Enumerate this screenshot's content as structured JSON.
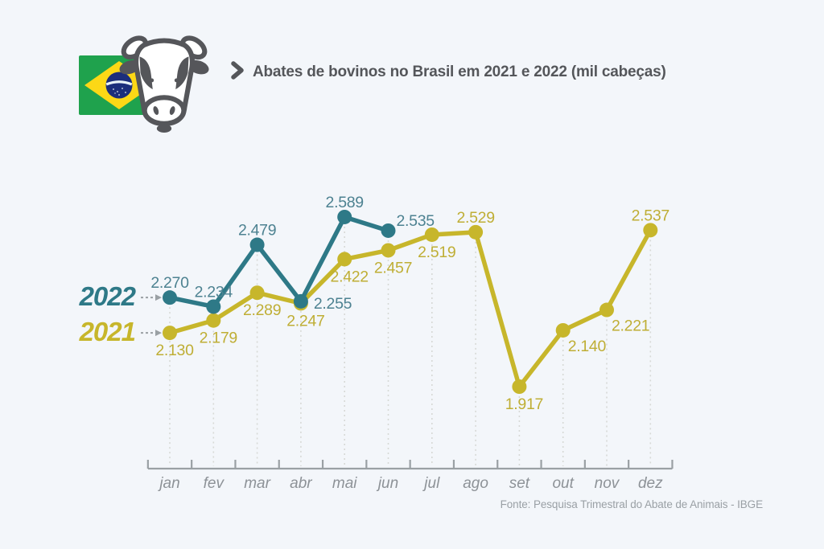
{
  "header": {
    "title": "Abates de bovinos no Brasil em 2021 e 2022 (mil cabeças)"
  },
  "source": "Fonte: Pesquisa Trimestral do Abate de Animais - IBGE",
  "colors": {
    "background": "#f3f6fa",
    "title_text": "#54565a",
    "source_text": "#9aa0a5",
    "axis": "#9aa0a4",
    "month_label": "#8d9297",
    "grid_dotted": "#d7d9d6",
    "series_2022": "#2e7987",
    "series_2021": "#c7b62b",
    "label_2022": "#4d8291",
    "label_2021": "#bfae35",
    "flag_green": "#1fa24d",
    "flag_yellow": "#fcd816",
    "flag_blue": "#1b2e7b",
    "cow_gray": "#55565a"
  },
  "icons": {
    "flag": "brazil-flag",
    "cow": "cow-head-icon",
    "chevron": "chevron-right-icon"
  },
  "chart_data": {
    "type": "line",
    "title": "Abates de bovinos no Brasil em 2021 e 2022 (mil cabeças)",
    "ylabel": "mil cabeças",
    "xlabel": "",
    "ylim": [
      1850,
      2650
    ],
    "grid": "dotted-vertical-per-month",
    "legend_position": "left-of-first-points",
    "categories": [
      "jan",
      "fev",
      "mar",
      "abr",
      "mai",
      "jun",
      "jul",
      "ago",
      "set",
      "out",
      "nov",
      "dez"
    ],
    "series": [
      {
        "name": "2022",
        "color": "#2e7987",
        "label_color": "#4d8291",
        "values": [
          2270,
          2234,
          2479,
          2255,
          2589,
          2535,
          null,
          null,
          null,
          null,
          null,
          null
        ],
        "labels": [
          "2.270",
          "2.234",
          "2.479",
          "2.255",
          "2.589",
          "2.535",
          null,
          null,
          null,
          null,
          null,
          null
        ],
        "label_placement": [
          "above",
          "above",
          "above",
          "right",
          "above",
          "above-right",
          null,
          null,
          null,
          null,
          null,
          null
        ]
      },
      {
        "name": "2021",
        "color": "#c7b62b",
        "label_color": "#bfae35",
        "values": [
          2130,
          2179,
          2289,
          2247,
          2422,
          2457,
          2519,
          2529,
          1917,
          2140,
          2221,
          2537
        ],
        "labels": [
          "2.130",
          "2.179",
          "2.289",
          "2.247",
          "2.422",
          "2.457",
          "2.519",
          "2.529",
          "1.917",
          "2.140",
          "2.221",
          "2.537"
        ],
        "label_placement": [
          "below",
          "below",
          "below",
          "below",
          "below",
          "below",
          "below",
          "above",
          "below",
          "below-right",
          "below-right",
          "above"
        ]
      }
    ]
  }
}
